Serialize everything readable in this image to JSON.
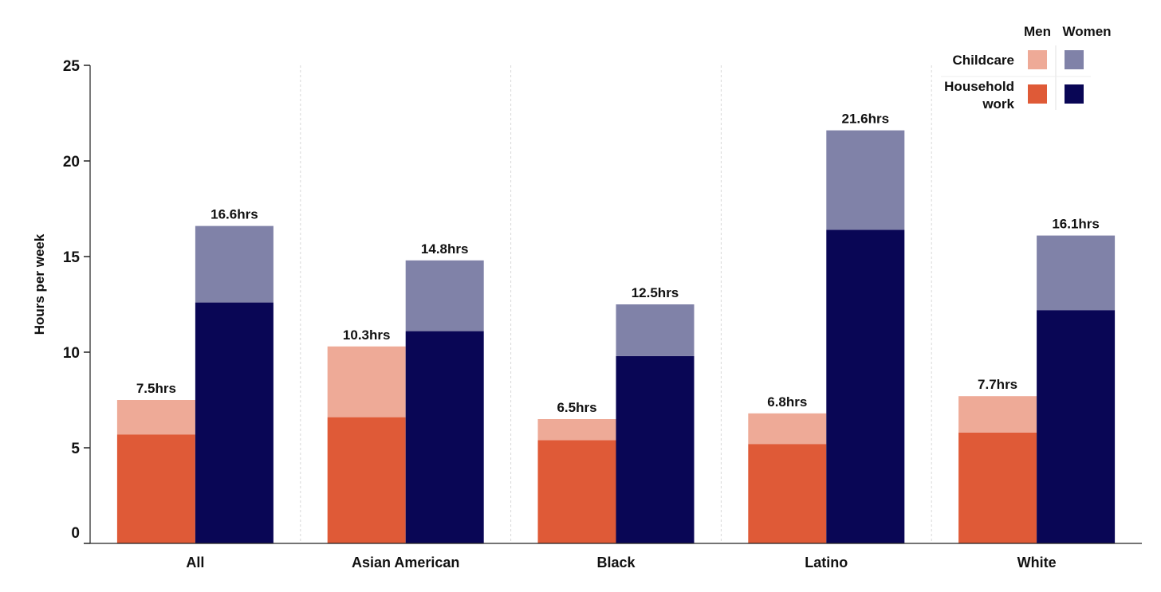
{
  "chart_data": {
    "type": "bar",
    "stacked": true,
    "grouped": true,
    "ylabel": "Hours per week",
    "xlabel": "",
    "title": "",
    "ylim": [
      0,
      25
    ],
    "yticks": [
      0,
      5,
      10,
      15,
      20,
      25
    ],
    "categories": [
      "All",
      "Asian American",
      "Black",
      "Latino",
      "White"
    ],
    "groups": [
      {
        "name": "Men",
        "totals": [
          7.5,
          10.3,
          6.5,
          6.8,
          7.7
        ],
        "total_labels": [
          "7.5hrs",
          "10.3hrs",
          "6.5hrs",
          "6.8hrs",
          "7.7hrs"
        ],
        "series": [
          {
            "name": "Household work",
            "values": [
              5.7,
              6.6,
              5.4,
              5.2,
              5.8
            ],
            "color": "#df5a37"
          },
          {
            "name": "Childcare",
            "values": [
              1.8,
              3.7,
              1.1,
              1.6,
              1.9
            ],
            "color": "#eeaa97"
          }
        ]
      },
      {
        "name": "Women",
        "totals": [
          16.6,
          14.8,
          12.5,
          21.6,
          16.1
        ],
        "total_labels": [
          "16.6hrs",
          "14.8hrs",
          "12.5hrs",
          "21.6hrs",
          "16.1hrs"
        ],
        "series": [
          {
            "name": "Household work",
            "values": [
              12.6,
              11.1,
              9.8,
              16.4,
              12.2
            ],
            "color": "#090655"
          },
          {
            "name": "Childcare",
            "values": [
              4.0,
              3.7,
              2.7,
              5.2,
              3.9
            ],
            "color": "#8082a8"
          }
        ]
      }
    ],
    "legend": {
      "placement": "top-right",
      "columns": [
        "Men",
        "Women"
      ],
      "rows": [
        "Childcare",
        "Household\nwork"
      ],
      "swatches": [
        [
          "#eeaa97",
          "#8082a8"
        ],
        [
          "#df5a37",
          "#090655"
        ]
      ]
    },
    "grid": false
  }
}
